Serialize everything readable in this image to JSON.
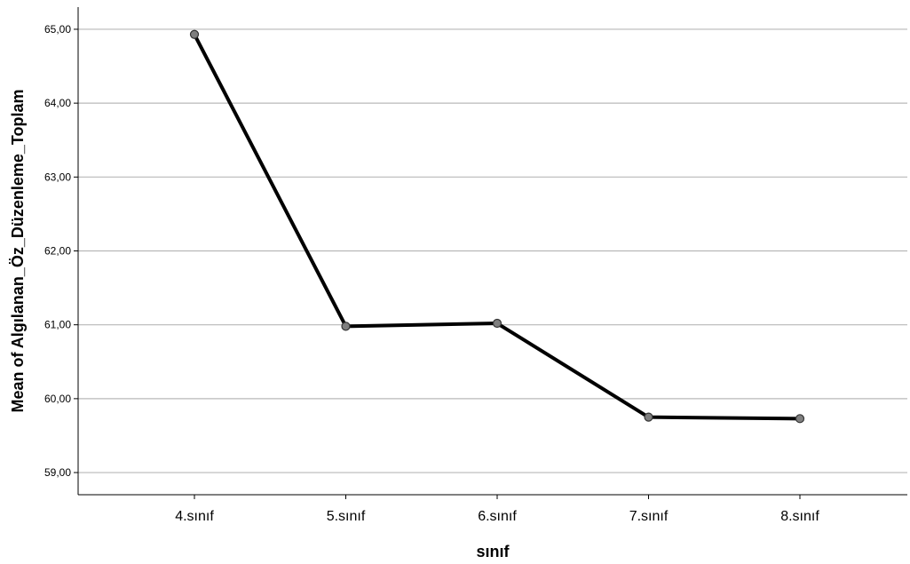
{
  "chart_data": {
    "type": "line",
    "categories": [
      "4.sınıf",
      "5.sınıf",
      "6.sınıf",
      "7.sınıf",
      "8.sınıf"
    ],
    "series": [
      {
        "values": [
          64.93,
          60.98,
          61.02,
          59.75,
          59.73
        ]
      }
    ],
    "xlabel": "sınıf",
    "ylabel": "Mean of Algılanan_Öz_Düzenleme_Toplam",
    "ylim": [
      58.7,
      65.3
    ],
    "yticks": [
      "59,00",
      "60,00",
      "61,00",
      "62,00",
      "63,00",
      "64,00",
      "65,00"
    ],
    "ytick_values": [
      59,
      60,
      61,
      62,
      63,
      64,
      65
    ],
    "grid": "horizontal",
    "colors": {
      "line": "#000000",
      "marker_fill": "#7f7f7f",
      "marker_stroke": "#333333",
      "grid": "#b8b8b8",
      "axis": "#000000"
    }
  }
}
